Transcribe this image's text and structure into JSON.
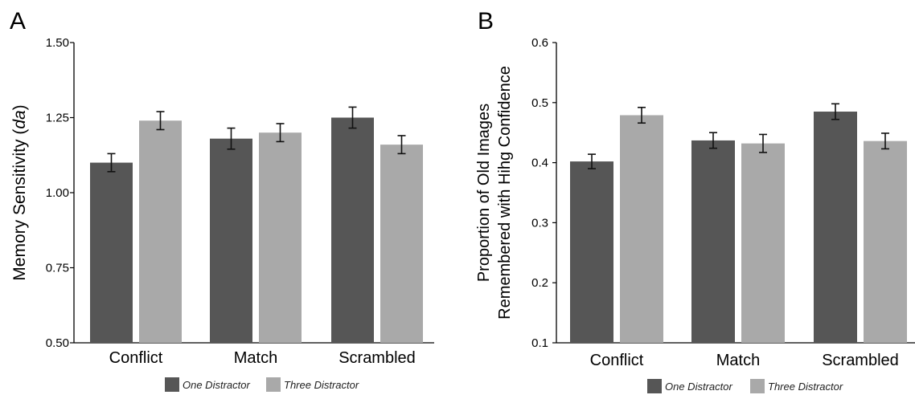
{
  "colors": {
    "one": "#565656",
    "three": "#a9a9a9",
    "axis": "#000000"
  },
  "chart_data": [
    {
      "panel_label": "A",
      "type": "bar",
      "categories": [
        "Conflict",
        "Match",
        "Scrambled"
      ],
      "ylabel": "Memory Sensitivity (",
      "ylabel_italic": "da",
      "ylabel_close": ")",
      "ylim": [
        0.5,
        1.5
      ],
      "yticks": [
        "0.50",
        "0.75",
        "1.00",
        "1.25",
        "1.50"
      ],
      "ytick_values": [
        0.5,
        0.75,
        1.0,
        1.25,
        1.5
      ],
      "series": [
        {
          "name": "One Distractor",
          "values": [
            1.1,
            1.18,
            1.25
          ],
          "errors": [
            0.03,
            0.035,
            0.035
          ]
        },
        {
          "name": "Three Distractor",
          "values": [
            1.24,
            1.2,
            1.16
          ],
          "errors": [
            0.03,
            0.03,
            0.03
          ]
        }
      ],
      "legend": {
        "items": [
          "One Distractor",
          "Three Distractor"
        ],
        "placement": "bottom"
      }
    },
    {
      "panel_label": "B",
      "type": "bar",
      "categories": [
        "Conflict",
        "Match",
        "Scrambled"
      ],
      "ylabel_line1": "Proportion of Old Images",
      "ylabel_line2": "Remembered with Hihg Confidence",
      "ylim": [
        0.1,
        0.6
      ],
      "yticks": [
        "0.1",
        "0.2",
        "0.3",
        "0.4",
        "0.5",
        "0.6"
      ],
      "ytick_values": [
        0.1,
        0.2,
        0.3,
        0.4,
        0.5,
        0.6
      ],
      "series": [
        {
          "name": "One Distractor",
          "values": [
            0.402,
            0.437,
            0.485
          ],
          "errors": [
            0.012,
            0.013,
            0.013
          ]
        },
        {
          "name": "Three Distractor",
          "values": [
            0.479,
            0.432,
            0.436
          ],
          "errors": [
            0.013,
            0.015,
            0.013
          ]
        }
      ],
      "legend": {
        "items": [
          "One Distractor",
          "Three Distractor"
        ],
        "placement": "bottom"
      }
    }
  ]
}
